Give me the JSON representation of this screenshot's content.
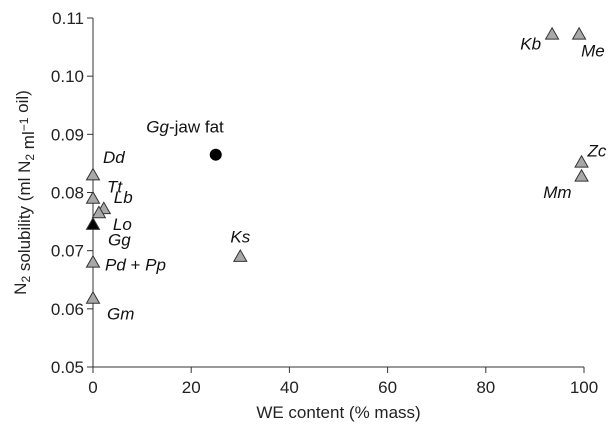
{
  "chart_data": {
    "type": "scatter",
    "xlabel": "WE content (% mass)",
    "ylabel": {
      "parts": [
        {
          "text": "N",
          "kind": "normal"
        },
        {
          "text": "2",
          "kind": "sub"
        },
        {
          "text": " solubility (ml N",
          "kind": "normal"
        },
        {
          "text": "2",
          "kind": "sub"
        },
        {
          "text": " ml",
          "kind": "normal"
        },
        {
          "text": "−1",
          "kind": "sup"
        },
        {
          "text": " oil)",
          "kind": "normal"
        }
      ]
    },
    "xlim": [
      0,
      100
    ],
    "ylim": [
      0.05,
      0.11
    ],
    "xticks": [
      0,
      20,
      40,
      60,
      80,
      100
    ],
    "yticks": [
      0.05,
      0.06,
      0.07,
      0.08,
      0.09,
      0.1,
      0.11
    ],
    "grid": false,
    "marker_colors": {
      "triangle_gray": "#a8a8a8",
      "triangle_black": "#000000",
      "circle_black": "#000000",
      "stroke": "#333333"
    },
    "points": [
      {
        "id": "Kb",
        "x": 93.5,
        "y": 0.1072,
        "marker": "triangle_gray",
        "label": [
          {
            "text": "Kb",
            "italic": true
          }
        ],
        "label_pos": "left"
      },
      {
        "id": "Me",
        "x": 99.0,
        "y": 0.1072,
        "marker": "triangle_gray",
        "label": [
          {
            "text": "Me",
            "italic": true
          }
        ],
        "label_pos": "below-right"
      },
      {
        "id": "Gg-jaw-fat",
        "x": 25.0,
        "y": 0.0865,
        "marker": "circle_black",
        "label": [
          {
            "text": "Gg",
            "italic": true
          },
          {
            "text": "-jaw fat",
            "italic": false
          }
        ],
        "label_pos": "above-left"
      },
      {
        "id": "Zc",
        "x": 99.5,
        "y": 0.0852,
        "marker": "triangle_gray",
        "label": [
          {
            "text": "Zc",
            "italic": true
          }
        ],
        "label_pos": "right-up"
      },
      {
        "id": "Mm",
        "x": 99.5,
        "y": 0.0828,
        "marker": "triangle_gray",
        "label": [
          {
            "text": "Mm",
            "italic": true
          }
        ],
        "label_pos": "below-left"
      },
      {
        "id": "Dd",
        "x": 0.0,
        "y": 0.083,
        "marker": "triangle_gray",
        "label": [
          {
            "text": "Dd",
            "italic": true
          }
        ],
        "label_pos": "right-up"
      },
      {
        "id": "Tt",
        "x": 0.0,
        "y": 0.079,
        "marker": "triangle_gray",
        "label": [
          {
            "text": "Tt",
            "italic": true
          }
        ],
        "label_pos": "right-up"
      },
      {
        "id": "Lb",
        "x": 2.2,
        "y": 0.0772,
        "marker": "triangle_gray",
        "label": [
          {
            "text": "Lb",
            "italic": true
          }
        ],
        "label_pos": "right-up"
      },
      {
        "id": "Lo",
        "x": 1.2,
        "y": 0.0765,
        "marker": "triangle_gray",
        "label": [
          {
            "text": "Lo",
            "italic": true
          }
        ],
        "label_pos": "right-down"
      },
      {
        "id": "Gg",
        "x": 0.0,
        "y": 0.0745,
        "marker": "triangle_black",
        "label": [
          {
            "text": "Gg",
            "italic": true
          }
        ],
        "label_pos": "right-down"
      },
      {
        "id": "Ks",
        "x": 30.0,
        "y": 0.069,
        "marker": "triangle_gray",
        "label": [
          {
            "text": "Ks",
            "italic": true
          }
        ],
        "label_pos": "above"
      },
      {
        "id": "Pd-Pp",
        "x": 0.0,
        "y": 0.068,
        "marker": "triangle_gray",
        "label": [
          {
            "text": "Pd",
            "italic": true
          },
          {
            "text": " + ",
            "italic": false
          },
          {
            "text": "Pp",
            "italic": true
          }
        ],
        "label_pos": "right"
      },
      {
        "id": "Gm",
        "x": 0.0,
        "y": 0.0618,
        "marker": "triangle_gray",
        "label": [
          {
            "text": "Gm",
            "italic": true
          }
        ],
        "label_pos": "right-down"
      }
    ]
  }
}
